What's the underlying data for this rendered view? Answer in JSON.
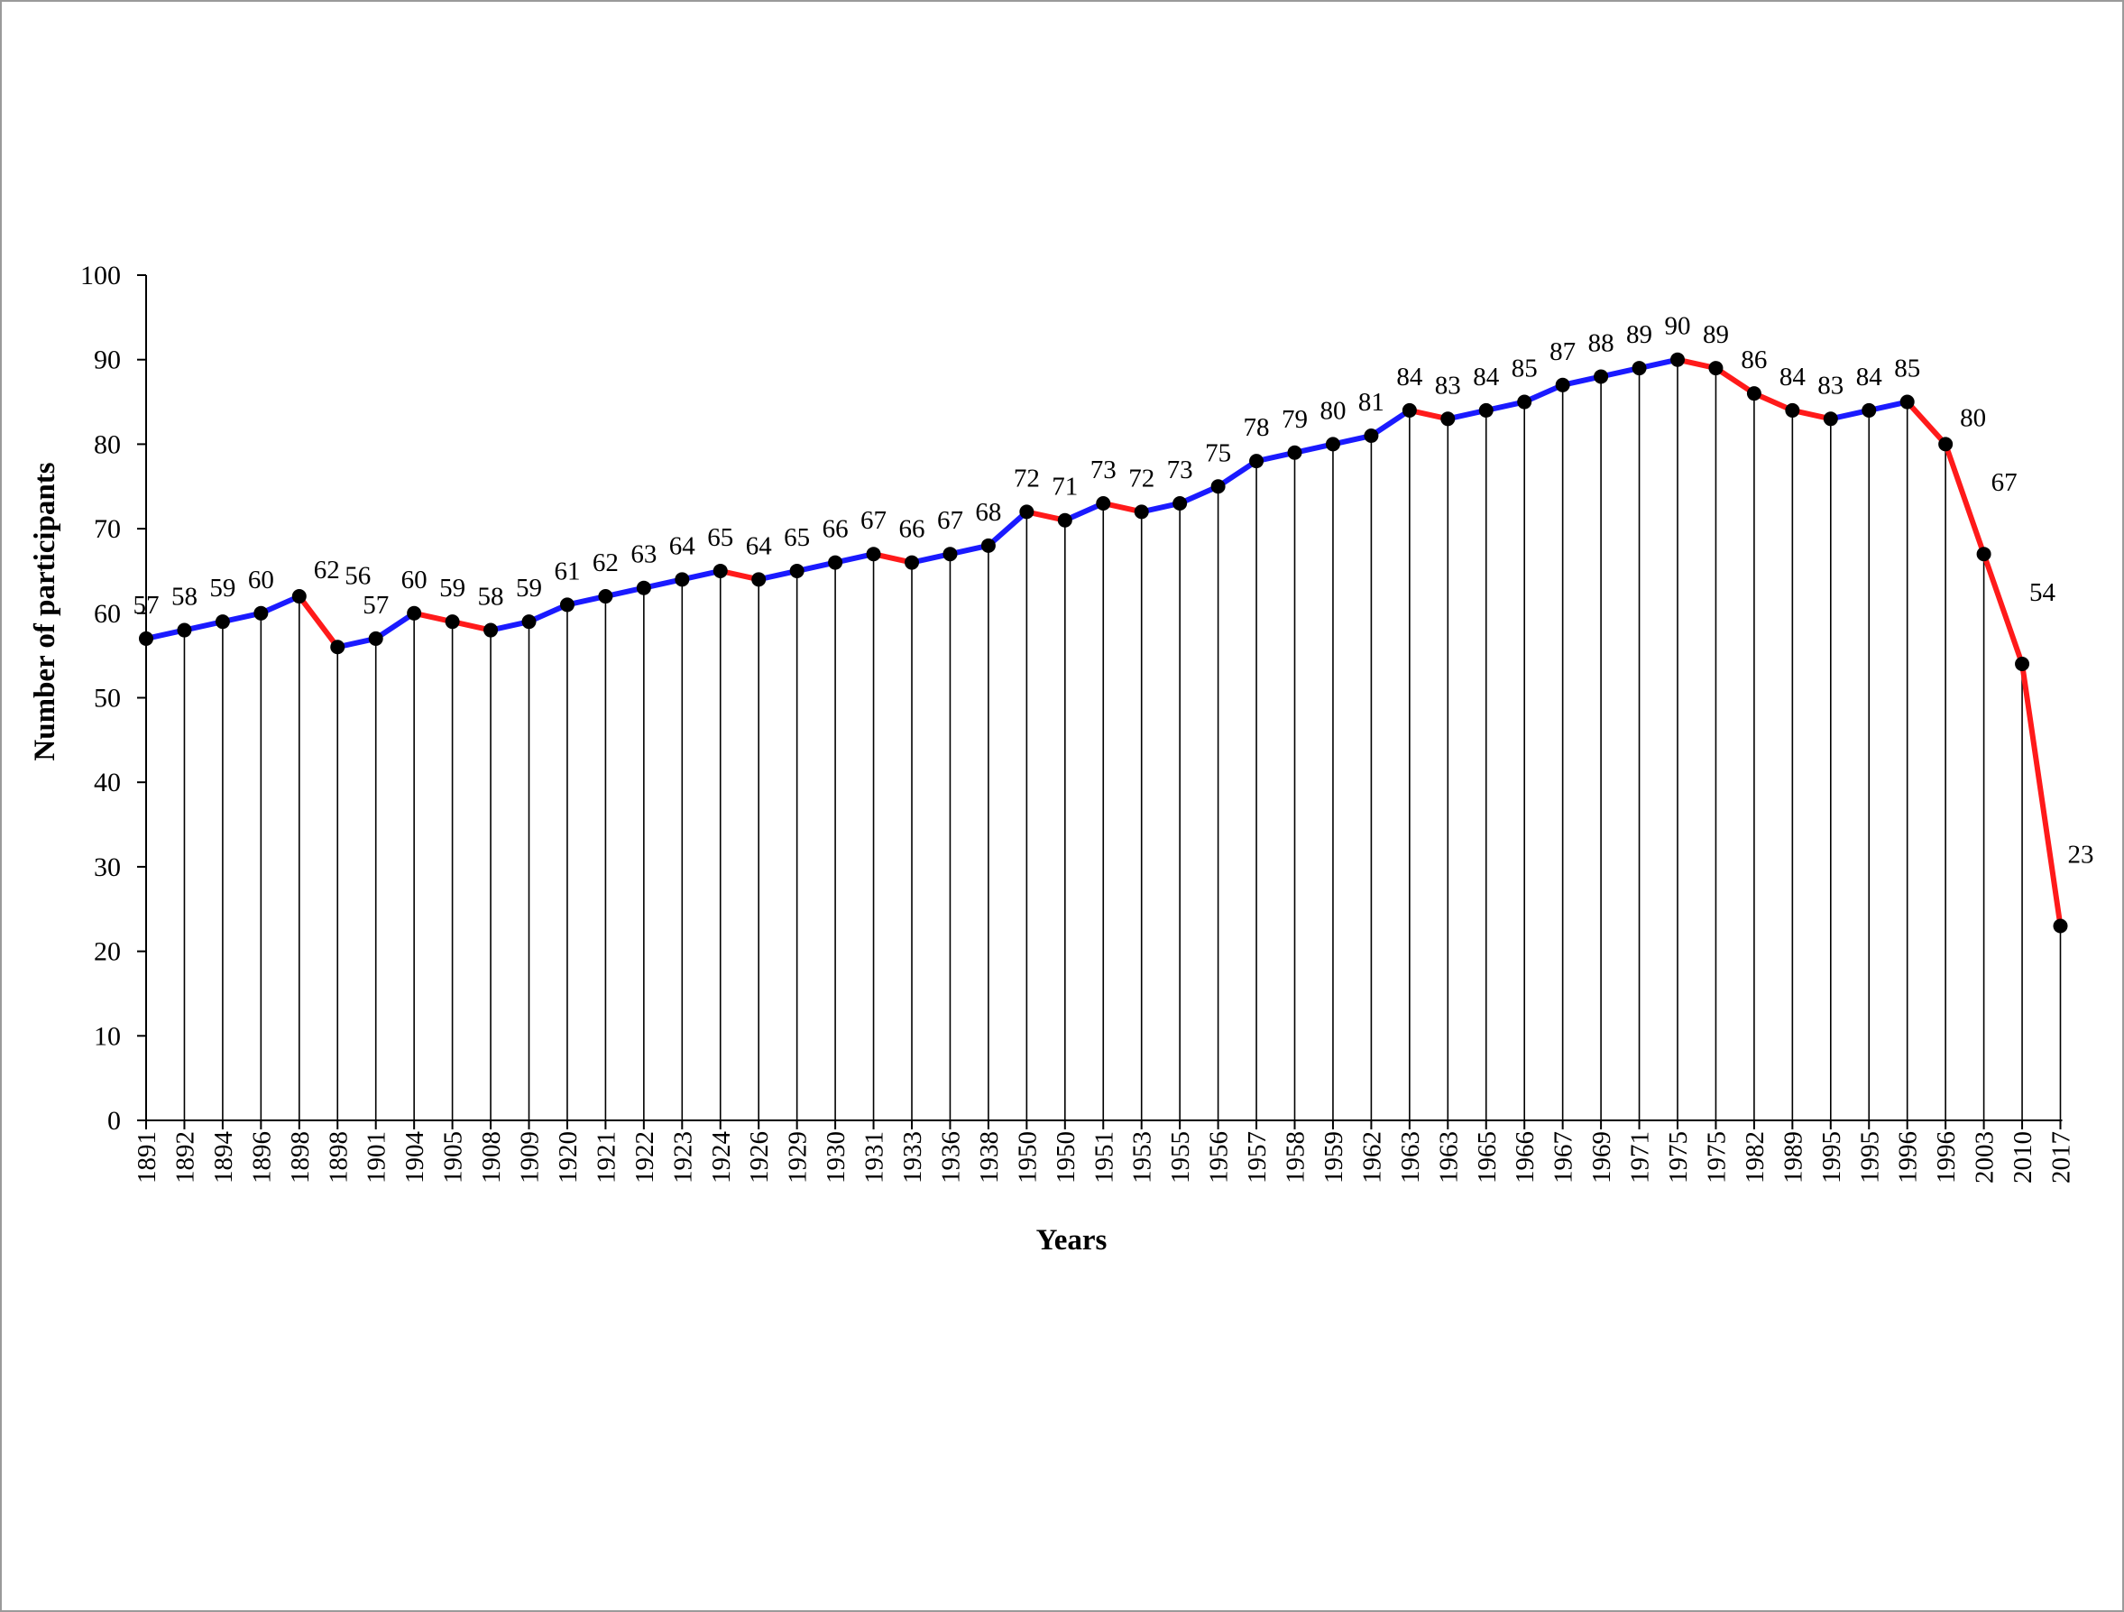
{
  "chart_data": {
    "type": "line",
    "xlabel": "Years",
    "ylabel": "Number of participants",
    "ylim": [
      0,
      100
    ],
    "yticks": [
      0,
      10,
      20,
      30,
      40,
      50,
      60,
      70,
      80,
      90,
      100
    ],
    "categories": [
      "1891",
      "1892",
      "1894",
      "1896",
      "1898",
      "1898",
      "1901",
      "1904",
      "1905",
      "1908",
      "1909",
      "1920",
      "1921",
      "1922",
      "1923",
      "1924",
      "1926",
      "1929",
      "1930",
      "1931",
      "1933",
      "1936",
      "1938",
      "1950",
      "1950",
      "1951",
      "1953",
      "1955",
      "1956",
      "1957",
      "1958",
      "1959",
      "1962",
      "1963",
      "1963",
      "1965",
      "1966",
      "1967",
      "1969",
      "1971",
      "1975",
      "1975",
      "1982",
      "1989",
      "1995",
      "1995",
      "1996",
      "1996",
      "2003",
      "2010",
      "2017"
    ],
    "values": [
      57,
      58,
      59,
      60,
      62,
      56,
      57,
      60,
      59,
      58,
      59,
      61,
      62,
      63,
      64,
      65,
      64,
      65,
      66,
      67,
      66,
      67,
      68,
      72,
      71,
      73,
      72,
      73,
      75,
      78,
      79,
      80,
      81,
      84,
      83,
      84,
      85,
      87,
      88,
      89,
      90,
      89,
      86,
      84,
      83,
      84,
      85,
      80,
      67,
      54,
      23
    ],
    "data_labels": true,
    "drop_lines": true,
    "grid": false,
    "legend": false,
    "colors": {
      "increase": "#1a1aff",
      "decrease": "#ff1a1a",
      "marker": "#000000",
      "axis": "#000000"
    }
  }
}
